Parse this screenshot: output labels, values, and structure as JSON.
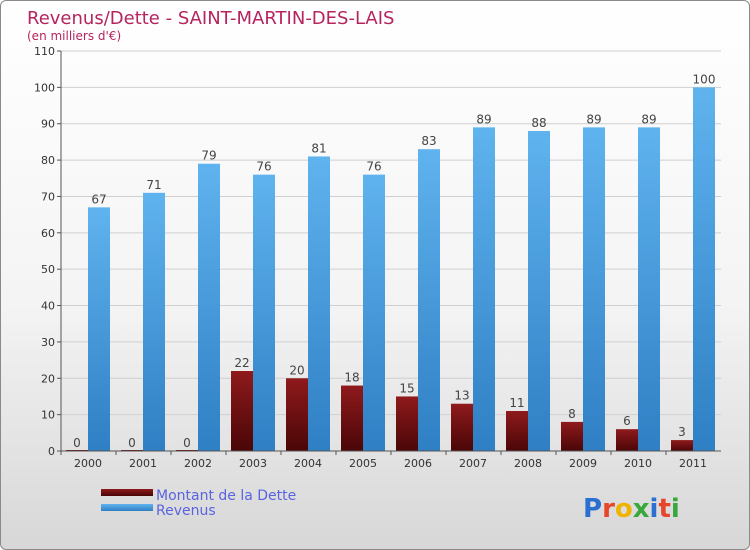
{
  "chart_data": {
    "type": "bar",
    "title": "Revenus/Dette - SAINT-MARTIN-DES-LAIS",
    "subtitle": "(en milliers d'€)",
    "categories": [
      "2000",
      "2001",
      "2002",
      "2003",
      "2004",
      "2005",
      "2006",
      "2007",
      "2008",
      "2009",
      "2010",
      "2011"
    ],
    "series": [
      {
        "name": "Montant de la Dette",
        "color": "#6e0f10",
        "values": [
          0,
          0,
          0,
          22,
          20,
          18,
          15,
          13,
          11,
          8,
          6,
          3
        ]
      },
      {
        "name": "Revenus",
        "color": "#4a9fe0",
        "values": [
          67,
          71,
          79,
          76,
          81,
          76,
          83,
          89,
          88,
          89,
          89,
          100
        ]
      }
    ],
    "ylim": [
      0,
      110
    ],
    "yticks": [
      0,
      10,
      20,
      30,
      40,
      50,
      60,
      70,
      80,
      90,
      100,
      110
    ],
    "grid": true,
    "legend_position": "bottom-left"
  },
  "logo": {
    "letters": [
      "P",
      "r",
      "o",
      "x",
      "i",
      "t",
      "i"
    ],
    "colors": [
      "#2b6fd1",
      "#e8462a",
      "#f0b400",
      "#39a83a",
      "#2b6fd1",
      "#e8462a",
      "#39a83a"
    ]
  }
}
